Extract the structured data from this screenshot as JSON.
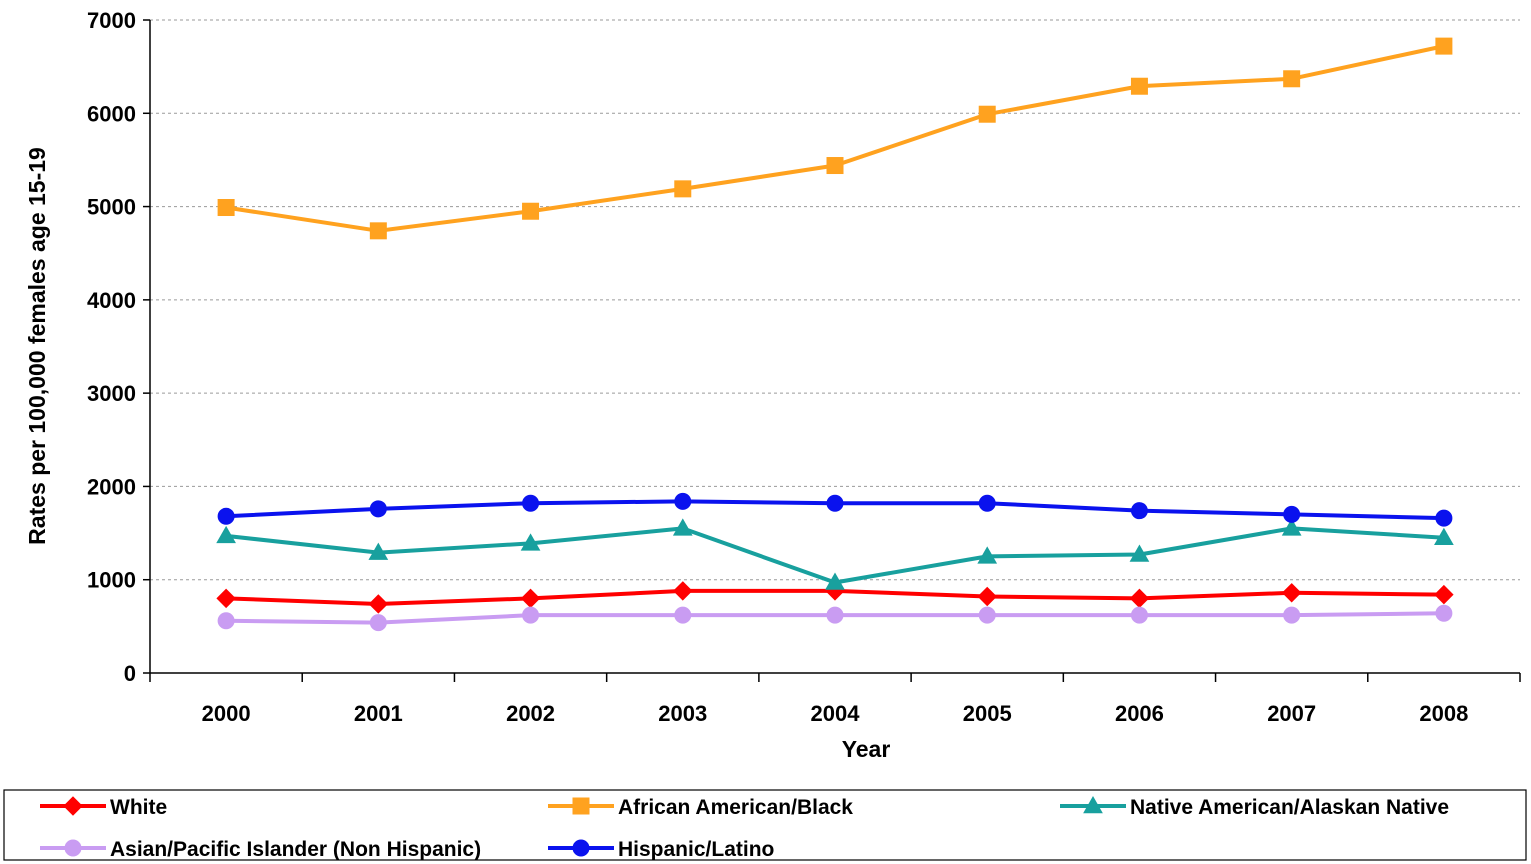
{
  "chart_data": {
    "type": "line",
    "title": "",
    "xlabel": "Year",
    "ylabel": "Rates per 100,000 females age 15-19",
    "categories": [
      "2000",
      "2001",
      "2002",
      "2003",
      "2004",
      "2005",
      "2006",
      "2007",
      "2008"
    ],
    "ylim": [
      0,
      7000
    ],
    "yticks": [
      "0",
      "1000",
      "2000",
      "3000",
      "4000",
      "5000",
      "6000",
      "7000"
    ],
    "grid": "horizontal dashed",
    "legend_position": "bottom",
    "series": [
      {
        "name": "White",
        "color": "#ff0000",
        "marker": "diamond",
        "values": [
          800,
          740,
          800,
          880,
          880,
          820,
          800,
          860,
          840
        ]
      },
      {
        "name": "African American/Black",
        "color": "#ffa21f",
        "marker": "square",
        "values": [
          4990,
          4740,
          4950,
          5190,
          5440,
          5990,
          6290,
          6370,
          6720
        ]
      },
      {
        "name": "Native American/Alaskan Native",
        "color": "#18a09e",
        "marker": "triangle",
        "values": [
          1470,
          1290,
          1390,
          1550,
          970,
          1250,
          1270,
          1550,
          1450
        ]
      },
      {
        "name": "Asian/Pacific Islander (Non Hispanic)",
        "color": "#c99cf2",
        "marker": "circle",
        "values": [
          560,
          540,
          620,
          620,
          620,
          620,
          620,
          620,
          640
        ]
      },
      {
        "name": "Hispanic/Latino",
        "color": "#0a12ee",
        "marker": "circle",
        "values": [
          1680,
          1760,
          1820,
          1840,
          1820,
          1820,
          1740,
          1700,
          1660
        ]
      }
    ]
  }
}
